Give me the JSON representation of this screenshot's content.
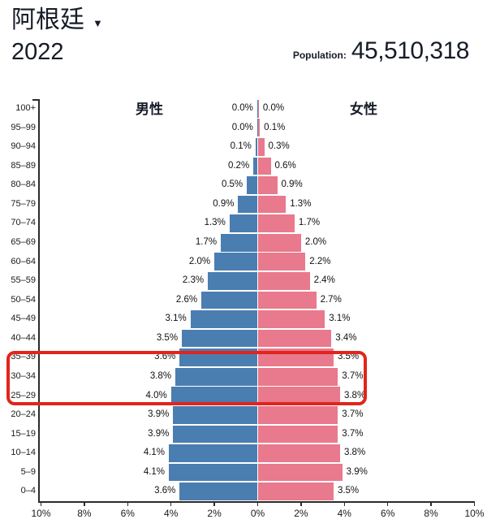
{
  "header": {
    "country": "阿根廷",
    "year": "2022",
    "population_label": "Population:",
    "population_value": "45,510,318"
  },
  "chart_data": {
    "type": "bar",
    "variant": "population-pyramid",
    "title": "阿根廷 2022",
    "categories": [
      "100+",
      "95–99",
      "90–94",
      "85–89",
      "80–84",
      "75–79",
      "70–74",
      "65–69",
      "60–64",
      "55–59",
      "50–54",
      "45–49",
      "40–44",
      "35–39",
      "30–34",
      "25–29",
      "20–24",
      "15–19",
      "10–14",
      "5–9",
      "0–4"
    ],
    "series": [
      {
        "name": "男性",
        "side": "left",
        "color": "#4a7eb1",
        "values": [
          0.0,
          0.0,
          0.1,
          0.2,
          0.5,
          0.9,
          1.3,
          1.7,
          2.0,
          2.3,
          2.6,
          3.1,
          3.5,
          3.6,
          3.8,
          4.0,
          3.9,
          3.9,
          4.1,
          4.1,
          3.6
        ]
      },
      {
        "name": "女性",
        "side": "right",
        "color": "#e9798c",
        "values": [
          0.0,
          0.1,
          0.3,
          0.6,
          0.9,
          1.3,
          1.7,
          2.0,
          2.2,
          2.4,
          2.7,
          3.1,
          3.4,
          3.5,
          3.7,
          3.8,
          3.7,
          3.7,
          3.8,
          3.9,
          3.5
        ]
      }
    ],
    "unit": "%",
    "x_ticks": [
      "10%",
      "8%",
      "6%",
      "4%",
      "2%",
      "0%",
      "2%",
      "4%",
      "6%",
      "8%",
      "10%"
    ],
    "xlim_each_side": [
      0,
      10
    ],
    "grid": false,
    "legend_position": "top-inside",
    "highlight": {
      "rows": [
        "35–39",
        "30–34",
        "25–29"
      ],
      "color": "#e0251c"
    }
  }
}
